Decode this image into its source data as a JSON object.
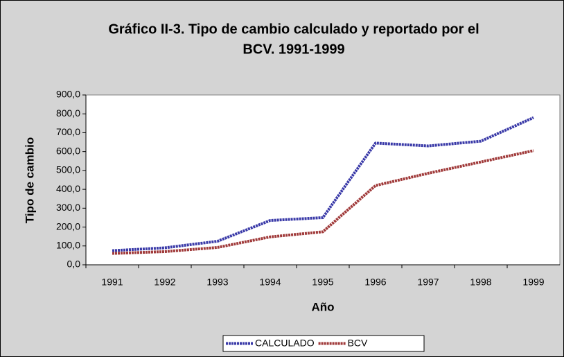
{
  "chart_data": {
    "type": "line",
    "title": [
      "Gráfico II-3. Tipo de cambio calculado y reportado por el",
      "BCV. 1991-1999"
    ],
    "xlabel": "Año",
    "ylabel": "Tipo de cambio",
    "categories": [
      "1991",
      "1992",
      "1993",
      "1994",
      "1995",
      "1996",
      "1997",
      "1998",
      "1999"
    ],
    "series": [
      {
        "name": "CALCULADO",
        "color": "#3a3aa8",
        "values": [
          75,
          90,
          125,
          235,
          250,
          645,
          630,
          655,
          780
        ]
      },
      {
        "name": "BCV",
        "color": "#a03a3a",
        "values": [
          60,
          70,
          92,
          148,
          175,
          420,
          485,
          545,
          605
        ]
      }
    ],
    "ylim": [
      0,
      900
    ],
    "yticks": [
      {
        "value": 0,
        "label": "0,0"
      },
      {
        "value": 100,
        "label": "100,0"
      },
      {
        "value": 200,
        "label": "200,0"
      },
      {
        "value": 300,
        "label": "300,0"
      },
      {
        "value": 400,
        "label": "400,0"
      },
      {
        "value": 500,
        "label": "500,0"
      },
      {
        "value": 600,
        "label": "600,0"
      },
      {
        "value": 700,
        "label": "700,0"
      },
      {
        "value": 800,
        "label": "800,0"
      },
      {
        "value": 900,
        "label": "900,0"
      }
    ],
    "grid": false,
    "legend": "bottom"
  }
}
